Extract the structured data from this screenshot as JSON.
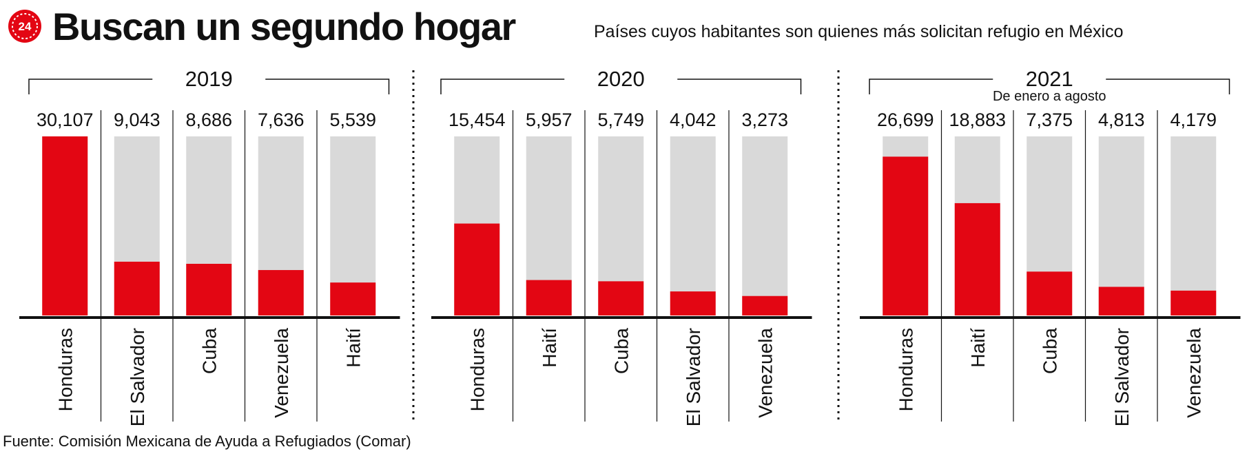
{
  "header": {
    "title": "Buscan un segundo hogar",
    "subtitle": "Países cuyos habitantes son quienes más solicitan refugio en México",
    "logo_text": "24"
  },
  "source": "Fuente: Comisión Mexicana de Ayuda a Refugiados (Comar)",
  "colors": {
    "bar": "#e30613",
    "track": "#d9d9d9",
    "text": "#111111"
  },
  "chart_data": [
    {
      "type": "bar",
      "title": "2019",
      "subtitle": "",
      "max_value": 30107,
      "categories": [
        "Honduras",
        "El Salvador",
        "Cuba",
        "Venezuela",
        "Haití"
      ],
      "values": [
        30107,
        9043,
        8686,
        7636,
        5539
      ],
      "value_labels": [
        "30,107",
        "9,043",
        "8,686",
        "7,636",
        "5,539"
      ]
    },
    {
      "type": "bar",
      "title": "2020",
      "subtitle": "",
      "max_value": 30107,
      "categories": [
        "Honduras",
        "Haití",
        "Cuba",
        "El Salvador",
        "Venezuela"
      ],
      "values": [
        15454,
        5957,
        5749,
        4042,
        3273
      ],
      "value_labels": [
        "15,454",
        "5,957",
        "5,749",
        "4,042",
        "3,273"
      ]
    },
    {
      "type": "bar",
      "title": "2021",
      "subtitle": "De enero a agosto",
      "max_value": 30107,
      "categories": [
        "Honduras",
        "Haití",
        "Cuba",
        "El Salvador",
        "Venezuela"
      ],
      "values": [
        26699,
        18883,
        7375,
        4813,
        4179
      ],
      "value_labels": [
        "26,699",
        "18,883",
        "7,375",
        "4,813",
        "4,179"
      ]
    }
  ]
}
